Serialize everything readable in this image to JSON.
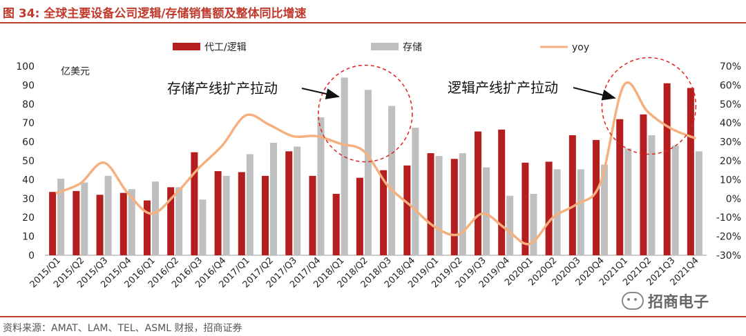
{
  "title": "图 34:  全球主要设备公司逻辑/存储销售额及整体同比增速",
  "source": "资料来源：AMAT、LAM、TEL、ASML 财报，招商证券",
  "watermark": "招商电子",
  "colors": {
    "logic": "#b41e1e",
    "memory": "#bfbfbf",
    "yoy": "#f5b080",
    "accent": "#c0392b",
    "circle": "#e02020"
  },
  "chart_data": {
    "type": "bar",
    "title": "全球主要设备公司逻辑/存储销售额及整体同比增速",
    "ylabel": "亿美元",
    "ylim": [
      0,
      100
    ],
    "y2lim": [
      -30,
      70
    ],
    "left_ticks": [
      "0",
      "10",
      "20",
      "30",
      "40",
      "50",
      "60",
      "70",
      "80",
      "90",
      "100"
    ],
    "right_ticks": [
      "-30%",
      "-20%",
      "-10%",
      "0%",
      "10%",
      "20%",
      "30%",
      "40%",
      "50%",
      "60%",
      "70%"
    ],
    "categories": [
      "2015/Q1",
      "2015/Q2",
      "2015/Q3",
      "2015/Q4",
      "2016/Q1",
      "2016/Q2",
      "2016/Q3",
      "2016/Q4",
      "2017/Q1",
      "2017/Q2",
      "2017/Q3",
      "2017/Q4",
      "2018/Q1",
      "2018/Q2",
      "2018/Q3",
      "2018/Q4",
      "2019/Q1",
      "2019/Q2",
      "2019/Q3",
      "2019/Q4",
      "2020Q1",
      "2020Q2",
      "2020Q3",
      "2020Q4",
      "2021Q1",
      "2021Q2",
      "2021Q3",
      "2021Q4"
    ],
    "series": [
      {
        "name": "代工/逻辑",
        "kind": "bar",
        "values": [
          33.5,
          34,
          32,
          33,
          29,
          36,
          54.5,
          44.5,
          44,
          42,
          55,
          42,
          32.5,
          41,
          45,
          47.5,
          54,
          51,
          65.5,
          66.5,
          49,
          49.5,
          63.5,
          61,
          72,
          74.5,
          91,
          88.5
        ]
      },
      {
        "name": "存储",
        "kind": "bar",
        "values": [
          40.5,
          38.5,
          42,
          35,
          39,
          36,
          29.5,
          42,
          53.5,
          59.5,
          57.5,
          73,
          94,
          87.5,
          79,
          67.5,
          52.5,
          54,
          46.5,
          31.5,
          32.5,
          45.5,
          45.5,
          48,
          56.5,
          63.5,
          58,
          55
        ]
      },
      {
        "name": "yoy",
        "kind": "line",
        "axis": "right",
        "values": [
          3,
          8,
          19,
          3,
          -8,
          2,
          16,
          28,
          44,
          39,
          33,
          33,
          29,
          25,
          7,
          -4,
          -15,
          -19,
          -8,
          -16,
          -24,
          -10,
          -3,
          8,
          60,
          46,
          37,
          32
        ]
      }
    ],
    "legend": [
      "代工/逻辑",
      "存储",
      "yoy"
    ],
    "annotations": [
      {
        "text": "存储产线扩产拉动",
        "target": "2018/Q2"
      },
      {
        "text": "逻辑产线扩产拉动",
        "target": "2021Q1"
      }
    ]
  }
}
